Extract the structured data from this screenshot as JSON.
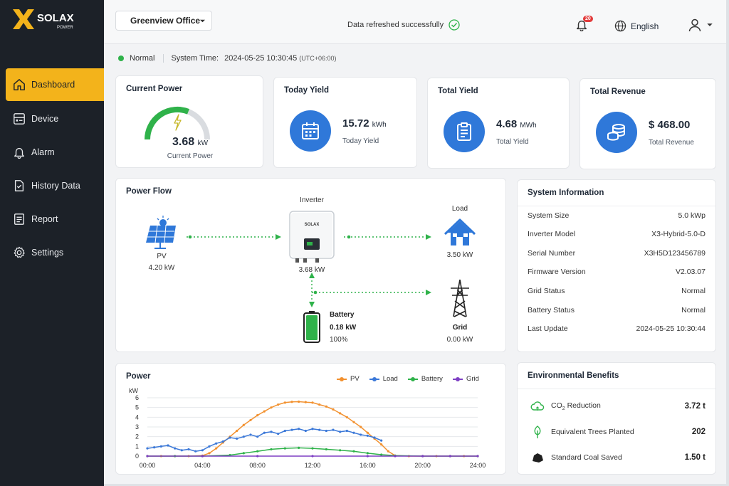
{
  "brand": {
    "logo_text": "SOLAX",
    "logo_sub": "POWER",
    "accent": "#f3b31b",
    "blue": "#2f78d9"
  },
  "sidebar": {
    "items": [
      {
        "label": "Dashboard",
        "icon": "home-icon",
        "active": true
      },
      {
        "label": "Device",
        "icon": "device-icon"
      },
      {
        "label": "Alarm",
        "icon": "alarm-bell-icon"
      },
      {
        "label": "History Data",
        "icon": "history-doc-icon"
      },
      {
        "label": "Report",
        "icon": "report-icon"
      },
      {
        "label": "Settings",
        "icon": "gear-icon"
      }
    ]
  },
  "topbar": {
    "site": "Greenview Office",
    "refresh_message": "Data refreshed successfully",
    "notification_count": "20",
    "language": "English"
  },
  "status": {
    "state": "Normal",
    "system_time_label": "System Time:",
    "system_time": "2024-05-25 10:30:45",
    "timezone": "(UTC+06:00)"
  },
  "current_power": {
    "title": "Current Power",
    "value": "3.68",
    "unit": "kW",
    "label": "Current Power",
    "gauge_fraction": 0.62
  },
  "today_yield": {
    "title": "Today Yield",
    "value": "15.72",
    "unit": "kWh",
    "label": "Today Yield"
  },
  "total_yield": {
    "title": "Total Yield",
    "value": "4.68",
    "unit": "MWh",
    "label": "Total Yield"
  },
  "total_revenue": {
    "title": "Total Revenue",
    "value": "$ 468.00",
    "label": "Total Revenue"
  },
  "power_flow": {
    "title": "Power Flow",
    "pv": {
      "label": "PV",
      "value": "4.20 kW"
    },
    "inverter": {
      "label": "Inverter",
      "value": "3.68 kW",
      "brand": "SOLAX"
    },
    "load": {
      "label": "Load",
      "value": "3.50 kW"
    },
    "battery": {
      "label": "Battery",
      "value": "0.18 kW",
      "soc": "100%",
      "soc_fraction": 1.0
    },
    "grid": {
      "label": "Grid",
      "value": "0.00 kW"
    }
  },
  "system_info": {
    "title": "System Information",
    "rows": [
      {
        "label": "System Size",
        "value": "5.0 kWp"
      },
      {
        "label": "Inverter Model",
        "value": "X3-Hybrid-5.0-D"
      },
      {
        "label": "Serial Number",
        "value": "X3H5D123456789"
      },
      {
        "label": "Firmware Version",
        "value": "V2.03.07"
      },
      {
        "label": "Grid Status",
        "value": "Normal"
      },
      {
        "label": "Battery Status",
        "value": "Normal"
      },
      {
        "label": "Last Update",
        "value": "2024-05-25 10:30:44"
      }
    ]
  },
  "environment": {
    "title": "Environmental Benefits",
    "rows": [
      {
        "label_main": "CO",
        "label_sub": "2",
        "label_rest": " Reduction",
        "value": "3.72 t",
        "icon": "co2-cloud-icon"
      },
      {
        "label": "Equivalent Trees Planted",
        "value": "202",
        "icon": "tree-icon"
      },
      {
        "label": "Standard Coal Saved",
        "value": "1.50 t",
        "icon": "coal-icon"
      }
    ]
  },
  "chart_data": {
    "type": "line",
    "title": "Power",
    "ylabel": "kW",
    "ylim": [
      0,
      6
    ],
    "yticks": [
      0,
      1,
      2,
      3,
      4,
      5,
      6
    ],
    "xticks": [
      "00:00",
      "04:00",
      "08:00",
      "12:00",
      "16:00",
      "20:00",
      "24:00"
    ],
    "xlim": [
      0,
      24
    ],
    "grid": true,
    "legend_position": "top-right",
    "series": [
      {
        "name": "PV",
        "color": "#f2912f",
        "x": [
          0,
          1,
          2,
          3,
          4,
          4.5,
          5,
          5.5,
          6,
          6.5,
          7,
          7.5,
          8,
          8.5,
          9,
          9.5,
          10,
          10.5,
          11,
          11.5,
          12,
          12.5,
          13,
          13.5,
          14,
          14.5,
          15,
          15.5,
          16,
          16.5,
          17,
          17.5,
          18,
          19,
          20,
          21,
          22,
          23,
          24
        ],
        "y": [
          0,
          0,
          0,
          0,
          0.05,
          0.3,
          0.8,
          1.4,
          2.0,
          2.6,
          3.2,
          3.7,
          4.2,
          4.6,
          5.0,
          5.3,
          5.5,
          5.58,
          5.6,
          5.55,
          5.5,
          5.3,
          5.1,
          4.8,
          4.4,
          4.0,
          3.5,
          3.0,
          2.4,
          1.8,
          1.2,
          0.5,
          0.05,
          0,
          0,
          0,
          0,
          0,
          0
        ]
      },
      {
        "name": "Load",
        "color": "#3b78d8",
        "x": [
          0,
          0.5,
          1,
          1.5,
          2,
          2.5,
          3,
          3.5,
          4,
          4.5,
          5,
          5.5,
          6,
          6.5,
          7,
          7.5,
          8,
          8.5,
          9,
          9.5,
          10,
          10.5,
          11,
          11.5,
          12,
          12.5,
          13,
          13.5,
          14,
          14.5,
          15,
          15.5,
          16,
          16.5,
          17
        ],
        "y": [
          0.8,
          0.9,
          1.0,
          1.1,
          0.8,
          0.6,
          0.7,
          0.5,
          0.6,
          1.0,
          1.3,
          1.5,
          1.9,
          1.8,
          2.0,
          2.2,
          2.0,
          2.4,
          2.5,
          2.3,
          2.6,
          2.7,
          2.8,
          2.6,
          2.8,
          2.7,
          2.6,
          2.7,
          2.5,
          2.6,
          2.4,
          2.2,
          2.1,
          1.9,
          1.6
        ]
      },
      {
        "name": "Battery",
        "color": "#2fb24a",
        "x": [
          0,
          2,
          4,
          6,
          7,
          8,
          9,
          10,
          11,
          12,
          13,
          14,
          15,
          16,
          17,
          18,
          20,
          22,
          24
        ],
        "y": [
          0,
          0,
          0,
          0.1,
          0.3,
          0.5,
          0.7,
          0.8,
          0.85,
          0.8,
          0.7,
          0.6,
          0.5,
          0.3,
          0.15,
          0.05,
          0,
          0,
          0
        ]
      },
      {
        "name": "Grid",
        "color": "#7e3fc4",
        "x": [
          0,
          4,
          8,
          12,
          16,
          18,
          20,
          22,
          24
        ],
        "y": [
          0,
          0,
          0,
          0,
          0,
          0,
          0,
          0,
          0
        ]
      }
    ]
  }
}
